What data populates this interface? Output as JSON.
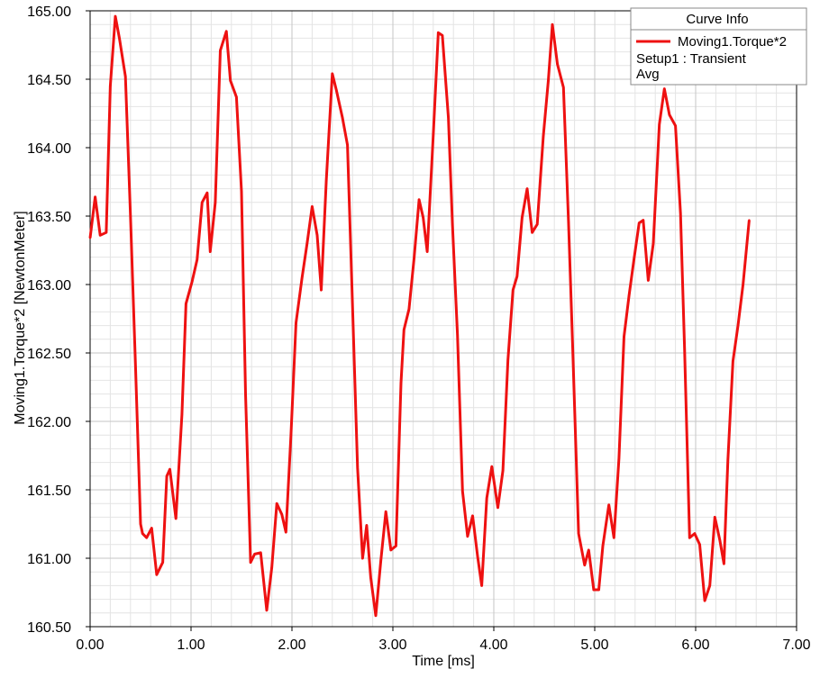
{
  "chart_data": {
    "type": "line",
    "title": "",
    "xlabel": "Time [ms]",
    "ylabel": "Moving1.Torque*2 [NewtonMeter]",
    "xlim": [
      0,
      7
    ],
    "ylim": [
      160.5,
      165
    ],
    "x_ticks": [
      "0.00",
      "1.00",
      "2.00",
      "3.00",
      "4.00",
      "5.00",
      "6.00",
      "7.00"
    ],
    "y_ticks": [
      "160.50",
      "161.00",
      "161.50",
      "162.00",
      "162.50",
      "163.00",
      "163.50",
      "164.00",
      "164.50",
      "165.00"
    ],
    "grid": true,
    "legend": {
      "title": "Curve Info",
      "placement": "top-right",
      "entries": [
        {
          "label": "Moving1.Torque*2",
          "details": [
            "Setup1 : Transient",
            "Avg"
          ],
          "color": "#ee1111"
        }
      ]
    },
    "series": [
      {
        "name": "Moving1.Torque*2",
        "color": "#ee1111",
        "points": [
          [
            0.0,
            163.34
          ],
          [
            0.05,
            163.64
          ],
          [
            0.1,
            163.36
          ],
          [
            0.16,
            163.38
          ],
          [
            0.2,
            164.45
          ],
          [
            0.25,
            164.96
          ],
          [
            0.29,
            164.8
          ],
          [
            0.35,
            164.52
          ],
          [
            0.4,
            163.5
          ],
          [
            0.45,
            162.4
          ],
          [
            0.5,
            161.25
          ],
          [
            0.52,
            161.18
          ],
          [
            0.56,
            161.15
          ],
          [
            0.61,
            161.22
          ],
          [
            0.66,
            160.88
          ],
          [
            0.72,
            160.97
          ],
          [
            0.76,
            161.6
          ],
          [
            0.79,
            161.65
          ],
          [
            0.85,
            161.29
          ],
          [
            0.91,
            162.05
          ],
          [
            0.95,
            162.86
          ],
          [
            1.01,
            163.02
          ],
          [
            1.06,
            163.18
          ],
          [
            1.11,
            163.6
          ],
          [
            1.16,
            163.67
          ],
          [
            1.19,
            163.24
          ],
          [
            1.24,
            163.6
          ],
          [
            1.29,
            164.71
          ],
          [
            1.35,
            164.85
          ],
          [
            1.39,
            164.49
          ],
          [
            1.45,
            164.37
          ],
          [
            1.5,
            163.68
          ],
          [
            1.54,
            162.2
          ],
          [
            1.59,
            160.97
          ],
          [
            1.63,
            161.03
          ],
          [
            1.69,
            161.04
          ],
          [
            1.75,
            160.62
          ],
          [
            1.8,
            160.93
          ],
          [
            1.85,
            161.4
          ],
          [
            1.9,
            161.32
          ],
          [
            1.94,
            161.19
          ],
          [
            1.99,
            161.9
          ],
          [
            2.04,
            162.72
          ],
          [
            2.1,
            163.05
          ],
          [
            2.15,
            163.3
          ],
          [
            2.2,
            163.57
          ],
          [
            2.25,
            163.36
          ],
          [
            2.29,
            162.96
          ],
          [
            2.34,
            163.76
          ],
          [
            2.4,
            164.54
          ],
          [
            2.44,
            164.42
          ],
          [
            2.5,
            164.22
          ],
          [
            2.55,
            164.02
          ],
          [
            2.59,
            163.08
          ],
          [
            2.65,
            161.66
          ],
          [
            2.7,
            161.0
          ],
          [
            2.74,
            161.24
          ],
          [
            2.78,
            160.86
          ],
          [
            2.83,
            160.58
          ],
          [
            2.88,
            160.98
          ],
          [
            2.93,
            161.34
          ],
          [
            2.98,
            161.06
          ],
          [
            3.03,
            161.09
          ],
          [
            3.08,
            162.28
          ],
          [
            3.11,
            162.67
          ],
          [
            3.16,
            162.82
          ],
          [
            3.21,
            163.19
          ],
          [
            3.26,
            163.62
          ],
          [
            3.3,
            163.49
          ],
          [
            3.34,
            163.24
          ],
          [
            3.4,
            164.09
          ],
          [
            3.45,
            164.84
          ],
          [
            3.49,
            164.82
          ],
          [
            3.55,
            164.22
          ],
          [
            3.59,
            163.44
          ],
          [
            3.64,
            162.63
          ],
          [
            3.69,
            161.49
          ],
          [
            3.74,
            161.16
          ],
          [
            3.79,
            161.31
          ],
          [
            3.84,
            161.01
          ],
          [
            3.88,
            160.8
          ],
          [
            3.93,
            161.44
          ],
          [
            3.98,
            161.67
          ],
          [
            4.04,
            161.37
          ],
          [
            4.09,
            161.64
          ],
          [
            4.14,
            162.45
          ],
          [
            4.19,
            162.96
          ],
          [
            4.23,
            163.06
          ],
          [
            4.28,
            163.49
          ],
          [
            4.33,
            163.7
          ],
          [
            4.38,
            163.38
          ],
          [
            4.43,
            163.44
          ],
          [
            4.49,
            164.08
          ],
          [
            4.54,
            164.49
          ],
          [
            4.58,
            164.9
          ],
          [
            4.63,
            164.61
          ],
          [
            4.69,
            164.44
          ],
          [
            4.74,
            163.46
          ],
          [
            4.78,
            162.57
          ],
          [
            4.84,
            161.18
          ],
          [
            4.9,
            160.95
          ],
          [
            4.94,
            161.06
          ],
          [
            4.99,
            160.77
          ],
          [
            5.04,
            160.77
          ],
          [
            5.08,
            161.09
          ],
          [
            5.14,
            161.39
          ],
          [
            5.19,
            161.15
          ],
          [
            5.24,
            161.73
          ],
          [
            5.29,
            162.62
          ],
          [
            5.34,
            162.92
          ],
          [
            5.39,
            163.19
          ],
          [
            5.44,
            163.45
          ],
          [
            5.48,
            163.47
          ],
          [
            5.53,
            163.03
          ],
          [
            5.58,
            163.3
          ],
          [
            5.64,
            164.17
          ],
          [
            5.69,
            164.43
          ],
          [
            5.74,
            164.24
          ],
          [
            5.8,
            164.16
          ],
          [
            5.85,
            163.52
          ],
          [
            5.89,
            162.53
          ],
          [
            5.94,
            161.15
          ],
          [
            5.99,
            161.18
          ],
          [
            6.04,
            161.1
          ],
          [
            6.09,
            160.69
          ],
          [
            6.14,
            160.8
          ],
          [
            6.19,
            161.3
          ],
          [
            6.24,
            161.13
          ],
          [
            6.28,
            160.96
          ],
          [
            6.32,
            161.72
          ],
          [
            6.37,
            162.44
          ],
          [
            6.42,
            162.7
          ],
          [
            6.47,
            163.0
          ],
          [
            6.53,
            163.47
          ]
        ]
      }
    ]
  }
}
